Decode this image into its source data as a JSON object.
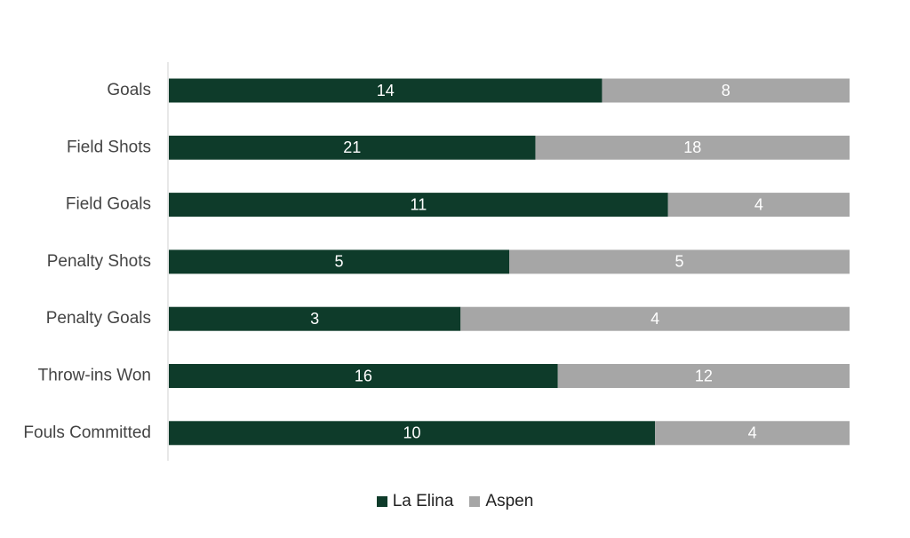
{
  "chart_data": {
    "type": "bar",
    "orientation": "horizontal",
    "stacking": "percent",
    "categories": [
      "Goals",
      "Field Shots",
      "Field Goals",
      "Penalty Shots",
      "Penalty Goals",
      "Throw-ins Won",
      "Fouls Committed"
    ],
    "series": [
      {
        "name": "La Elina",
        "color": "#0e3b2a",
        "values": [
          14,
          21,
          11,
          5,
          3,
          16,
          10
        ]
      },
      {
        "name": "Aspen",
        "color": "#a6a6a6",
        "values": [
          8,
          18,
          4,
          5,
          4,
          12,
          4
        ]
      }
    ],
    "data_labels": true,
    "legend": "bottom-center",
    "grid": false
  }
}
